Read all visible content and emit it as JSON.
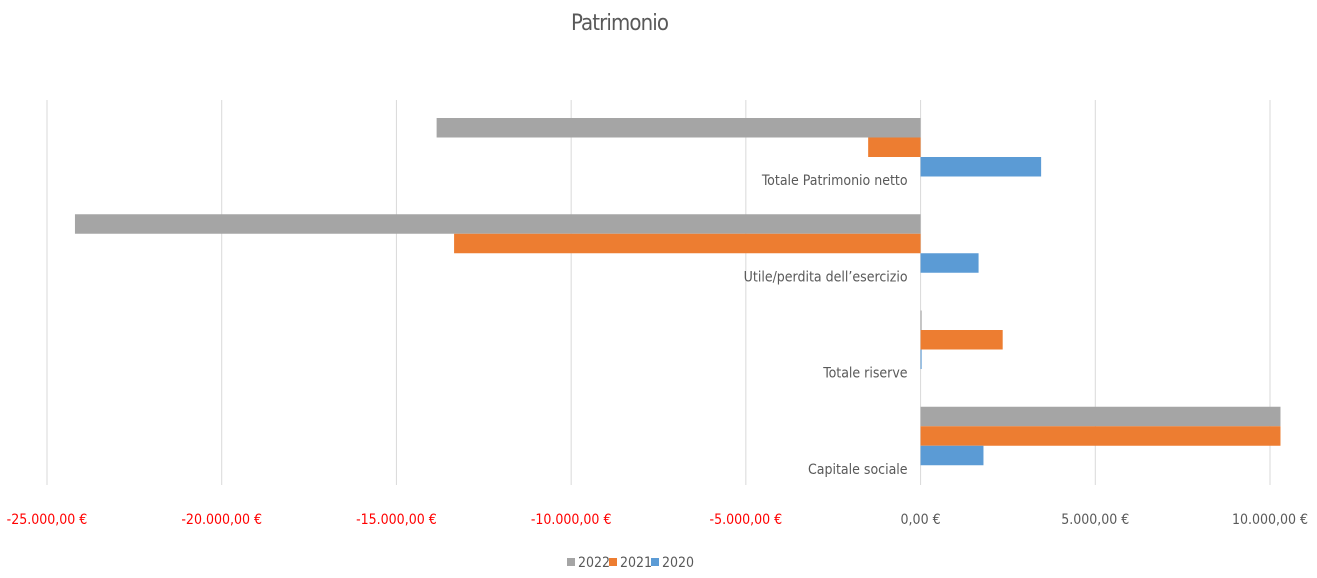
{
  "chart_data": {
    "type": "hbar",
    "title": "Patrimonio",
    "categories": [
      "Totale Patrimonio netto",
      "Utile/perdita dell’esercizio",
      "Totale riserve",
      "Capitale sociale"
    ],
    "series": [
      {
        "name": "2022",
        "color": "#a5a5a5",
        "values": [
          -13850,
          -24200,
          30,
          10300
        ]
      },
      {
        "name": "2021",
        "color": "#ed7d31",
        "values": [
          -1500,
          -13350,
          2350,
          10300
        ]
      },
      {
        "name": "2020",
        "color": "#5b9bd5",
        "values": [
          3450,
          1660,
          30,
          1800
        ]
      }
    ],
    "xlim": [
      -25000,
      10000
    ],
    "xticks": [
      {
        "value": -25000,
        "label": "-25.000,00 €"
      },
      {
        "value": -20000,
        "label": "-20.000,00 €"
      },
      {
        "value": -15000,
        "label": "-15.000,00 €"
      },
      {
        "value": -10000,
        "label": "-10.000,00 €"
      },
      {
        "value": -5000,
        "label": "-5.000,00 €"
      },
      {
        "value": 0,
        "label": "0,00 €"
      },
      {
        "value": 5000,
        "label": "5.000,00 €"
      },
      {
        "value": 10000,
        "label": "10.000,00 €"
      }
    ],
    "negative_tick_color": "#ff0000",
    "grid": true,
    "legend": "bottom"
  }
}
